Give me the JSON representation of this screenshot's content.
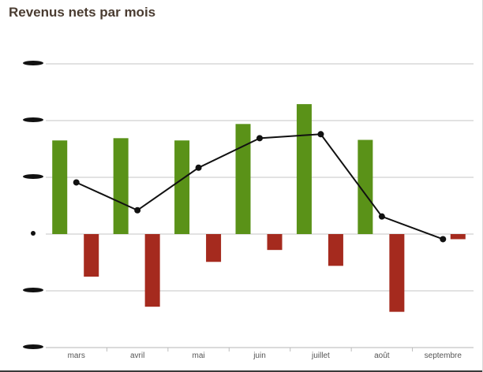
{
  "title": "Revenus nets par mois",
  "colors": {
    "positive": "#5a9218",
    "negative": "#a52a1e",
    "line": "#111111",
    "grid": "#c4c4c4",
    "title": "#4a3c31",
    "tick": "#555555"
  },
  "chart_data": {
    "type": "bar",
    "title": "Revenus nets par mois",
    "categories": [
      "mars",
      "avril",
      "mai",
      "juin",
      "juillet",
      "août",
      "septembre"
    ],
    "series": [
      {
        "type": "bar",
        "values": [
          1.65,
          1.69,
          1.65,
          1.94,
          2.29,
          1.66,
          0
        ]
      },
      {
        "type": "bar",
        "values": [
          -0.75,
          -1.28,
          -0.49,
          -0.28,
          -0.56,
          -1.37,
          -0.09
        ]
      },
      {
        "type": "line",
        "values": [
          0.91,
          0.42,
          1.17,
          1.69,
          1.76,
          0.31,
          -0.09
        ]
      }
    ],
    "ylim": [
      -2,
      3
    ],
    "y_tick_labels_obscured": true,
    "grid": true,
    "legend": "none"
  }
}
